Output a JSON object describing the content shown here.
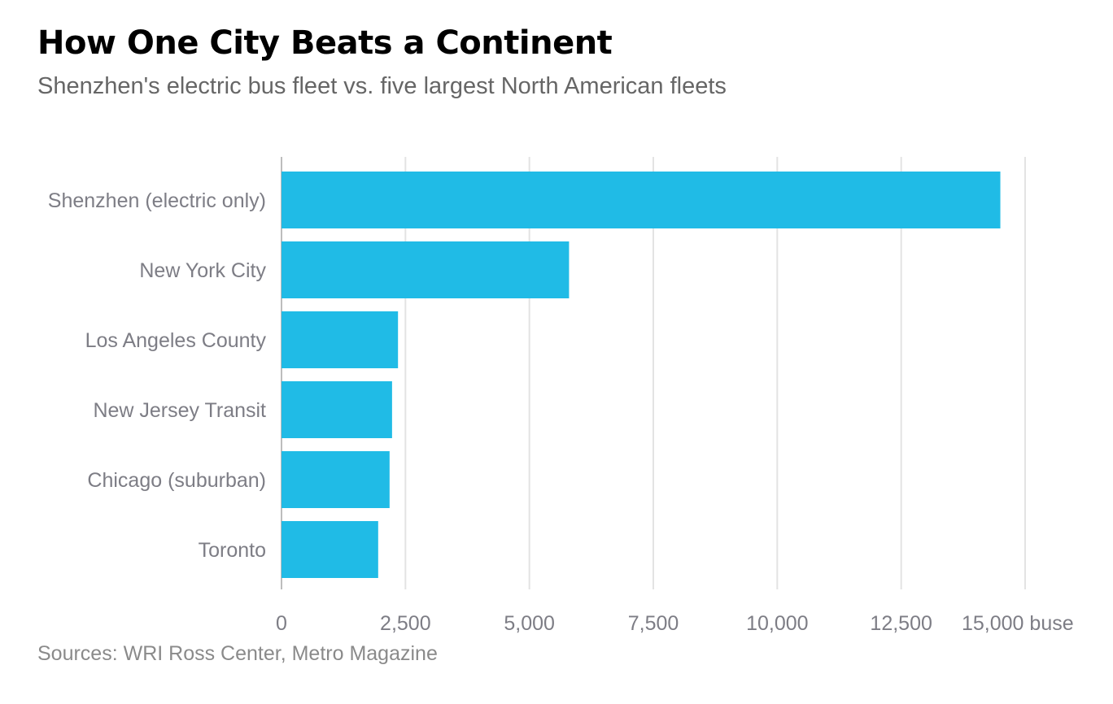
{
  "chart_data": {
    "type": "bar",
    "orientation": "horizontal",
    "title": "How One City Beats a Continent",
    "subtitle": "Shenzhen's electric bus fleet vs. five largest North American fleets",
    "categories": [
      "Shenzhen (electric only)",
      "New York City",
      "Los Angeles County",
      "New Jersey Transit",
      "Chicago (suburban)",
      "Toronto"
    ],
    "values": [
      14500,
      5800,
      2350,
      2230,
      2180,
      1950
    ],
    "xlim": [
      0,
      15000
    ],
    "ticks": [
      0,
      2500,
      5000,
      7500,
      10000,
      12500,
      15000
    ],
    "tick_labels": [
      "0",
      "2,500",
      "5,000",
      "7,500",
      "10,000",
      "12,500",
      "15,000 buse"
    ],
    "grid": true,
    "bar_color": "#20bbe6",
    "source": "Sources: WRI Ross Center, Metro Magazine"
  }
}
